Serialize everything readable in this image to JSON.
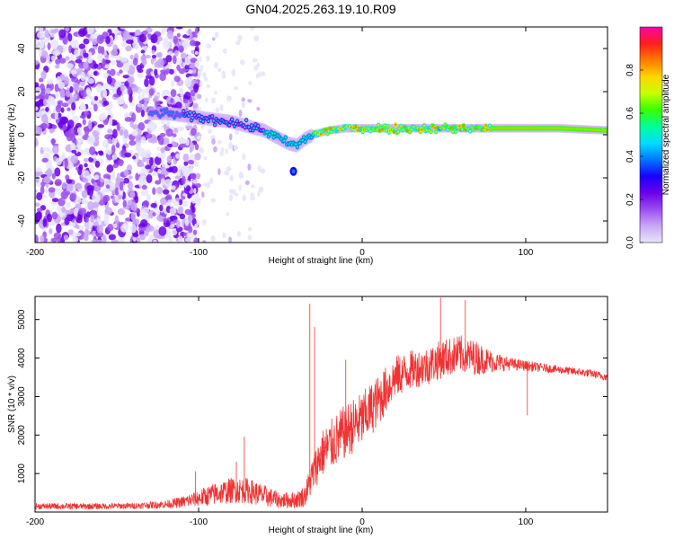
{
  "chart_data": [
    {
      "type": "heatmap",
      "title": "GN04.2025.263.19.10.R09",
      "xlabel": "Height of straight line (km)",
      "ylabel": "Frequency (Hz)",
      "xlim": [
        -200,
        150
      ],
      "ylim": [
        -50,
        50
      ],
      "x_ticks": [
        -200,
        -100,
        0,
        100
      ],
      "y_ticks": [
        -40,
        -20,
        0,
        20,
        40
      ],
      "colorbar": {
        "label": "Normalized spectral amplitude",
        "range": [
          0,
          1
        ],
        "ticks": [
          0.0,
          0.2,
          0.4,
          0.6,
          0.8
        ],
        "colormap": [
          "#e6e6fa",
          "#c9a8f5",
          "#9b4df0",
          "#6a00e8",
          "#1a00ff",
          "#0078ff",
          "#00ddff",
          "#00ff9a",
          "#39ff00",
          "#c8ff00",
          "#ffd400",
          "#ff7a00",
          "#ff1e1e",
          "#ff00aa"
        ]
      },
      "ridge": {
        "x": [
          -130,
          -120,
          -110,
          -100,
          -90,
          -80,
          -70,
          -60,
          -55,
          -50,
          -45,
          -40,
          -35,
          -30,
          -25,
          -20,
          -10,
          0,
          10,
          20,
          40,
          60,
          80,
          100,
          120,
          150
        ],
        "freq_hz": [
          10,
          10,
          9,
          8,
          7,
          6,
          4,
          2,
          0,
          -2,
          -4,
          -5,
          -2,
          0,
          1,
          2,
          3,
          3,
          3,
          3,
          3,
          3,
          3,
          3,
          3,
          2
        ]
      },
      "noise_region_x": [
        -200,
        -110
      ],
      "annotations": [
        {
          "x": -42,
          "freq_hz": -17,
          "note": "isolated blob"
        }
      ]
    },
    {
      "type": "line",
      "xlabel": "Height of straight line (km)",
      "ylabel": "SNR (10 * v/v)",
      "xlim": [
        -200,
        150
      ],
      "ylim": [
        0,
        5600
      ],
      "x_ticks": [
        -200,
        -100,
        0,
        100
      ],
      "y_ticks": [
        1000,
        2000,
        3000,
        4000,
        5000
      ],
      "color": "#f03232",
      "envelope": {
        "x": [
          -200,
          -180,
          -160,
          -140,
          -120,
          -110,
          -100,
          -90,
          -80,
          -70,
          -60,
          -50,
          -40,
          -35,
          -30,
          -25,
          -20,
          -10,
          0,
          10,
          20,
          30,
          40,
          50,
          60,
          70,
          80,
          90,
          100,
          110,
          120,
          130,
          140,
          150
        ],
        "mean": [
          150,
          150,
          150,
          160,
          200,
          260,
          360,
          470,
          560,
          560,
          420,
          300,
          320,
          420,
          1000,
          1500,
          1700,
          2100,
          2400,
          2900,
          3500,
          3700,
          3800,
          4000,
          4100,
          4000,
          3900,
          3850,
          3800,
          3750,
          3700,
          3650,
          3600,
          3500
        ],
        "spread": [
          70,
          70,
          70,
          70,
          90,
          130,
          200,
          260,
          300,
          300,
          260,
          180,
          200,
          250,
          450,
          550,
          600,
          650,
          650,
          600,
          500,
          450,
          450,
          450,
          450,
          400,
          250,
          150,
          120,
          100,
          90,
          90,
          90,
          90
        ]
      },
      "spikes": [
        {
          "x": -102,
          "value": 1050
        },
        {
          "x": -77,
          "value": 1300
        },
        {
          "x": -72,
          "value": 1950
        },
        {
          "x": -32,
          "value": 5400
        },
        {
          "x": -29,
          "value": 4800
        },
        {
          "x": -10,
          "value": 3950
        },
        {
          "x": 48,
          "value": 5560
        },
        {
          "x": 63,
          "value": 5500
        },
        {
          "x": 101,
          "value": 2520
        }
      ]
    }
  ]
}
